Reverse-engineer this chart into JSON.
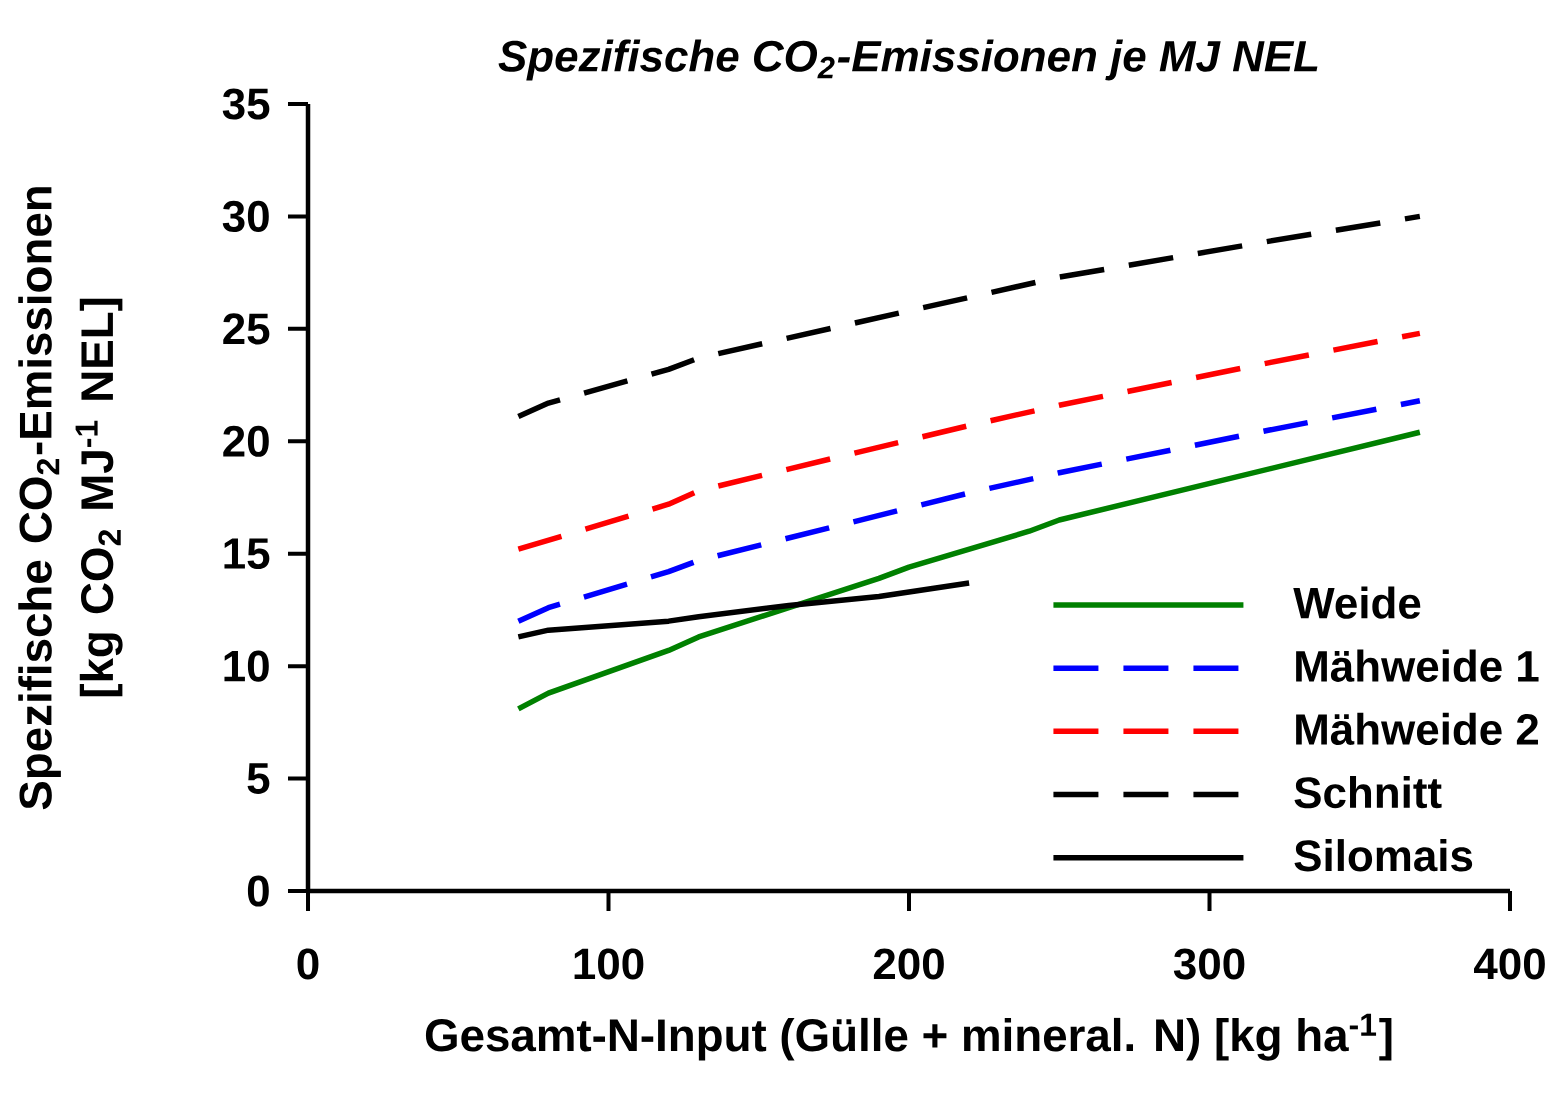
{
  "chart_data": {
    "type": "line",
    "title": "*Spezifische CO$_{2}$-Emissionen je MJ NEL*",
    "xlabel": "Gesamt-N-Input (Gülle + mineral. N) [kg ha$^{-1}$]",
    "ylabel": "Spezifische CO$_{2}$-Emissionen [kg CO$_{2}$ MJ$^{-1}$ NEL]",
    "xlim": [
      0,
      400
    ],
    "xticks": [
      0,
      100,
      200,
      300,
      400
    ],
    "ylim": [
      0,
      35
    ],
    "yticks": [
      0,
      5,
      10,
      15,
      20,
      25,
      30,
      35
    ],
    "grid": false,
    "legend": "bottom right",
    "marker": "none",
    "series": [
      {
        "name": "Weide",
        "color": "#008000",
        "line_style": "solid",
        "x": [
          70,
          80,
          120,
          130,
          160,
          190,
          200,
          240,
          250,
          370
        ],
        "values": [
          8.1,
          8.8,
          10.7,
          11.3,
          12.6,
          13.9,
          14.4,
          16.0,
          16.5,
          20.4
        ]
      },
      {
        "name": "Mähweide 1",
        "color": "#0000ff",
        "line_style": "dashed",
        "x": [
          70,
          80,
          120,
          130,
          220,
          250,
          320,
          370
        ],
        "values": [
          12.0,
          12.6,
          14.2,
          14.7,
          17.7,
          18.6,
          20.5,
          21.8
        ]
      },
      {
        "name": "Mähweide 2",
        "color": "#ff0000",
        "line_style": "dashed",
        "x": [
          70,
          120,
          130,
          220,
          250,
          320,
          370
        ],
        "values": [
          15.2,
          17.2,
          17.8,
          20.7,
          21.6,
          23.5,
          24.8
        ]
      },
      {
        "name": "Schnitt",
        "color": "#000000",
        "line_style": "dashed",
        "x": [
          70,
          80,
          120,
          130,
          220,
          250,
          320,
          370
        ],
        "values": [
          21.1,
          21.7,
          23.2,
          23.7,
          26.4,
          27.3,
          28.9,
          30.0
        ]
      },
      {
        "name": "Silomais",
        "color": "#000000",
        "line_style": "solid",
        "x": [
          70,
          80,
          120,
          130,
          160,
          190,
          220
        ],
        "values": [
          11.3,
          11.6,
          12.0,
          12.2,
          12.7,
          13.1,
          13.7
        ]
      }
    ]
  }
}
